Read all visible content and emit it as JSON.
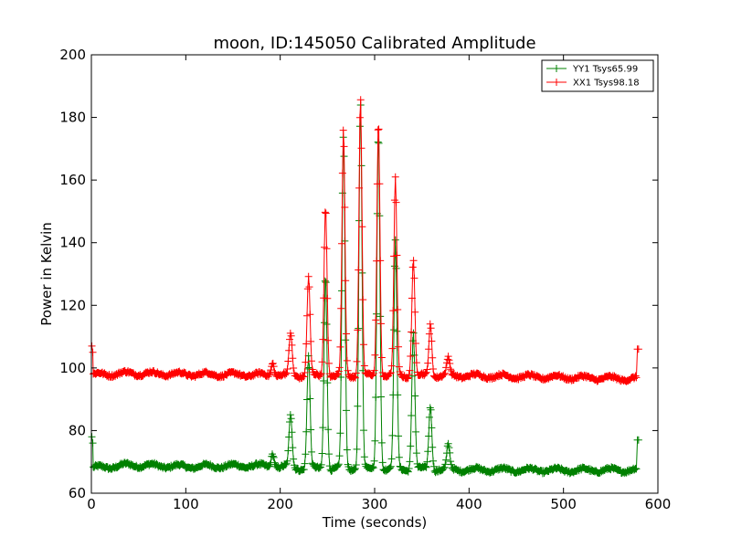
{
  "chart_data": {
    "type": "line",
    "title": "moon, ID:145050 Calibrated Amplitude",
    "xlabel": "Time (seconds)",
    "ylabel": "Power in Kelvin",
    "xlim": [
      0,
      600
    ],
    "ylim": [
      60,
      200
    ],
    "xticks": [
      0,
      100,
      200,
      300,
      400,
      500,
      600
    ],
    "yticks": [
      60,
      80,
      100,
      120,
      140,
      160,
      180,
      200
    ],
    "grid": false,
    "legend_position": "top-right",
    "marker": "+",
    "series": [
      {
        "name": "YY1 Tsys65.99",
        "color": "#008000",
        "t_start": 2,
        "t_end": 578,
        "baseline_points": [
          [
            2,
            68.0
          ],
          [
            40,
            69.0
          ],
          [
            100,
            68.5
          ],
          [
            175,
            68.8
          ],
          [
            230,
            67.8
          ],
          [
            300,
            67.8
          ],
          [
            400,
            67.5
          ],
          [
            500,
            67.3
          ],
          [
            578,
            67.4
          ]
        ],
        "start_spike": 78,
        "end_spike": 77,
        "peaks": [
          [
            192,
            73
          ],
          [
            211,
            85
          ],
          [
            230,
            104
          ],
          [
            248,
            130
          ],
          [
            267,
            174
          ],
          [
            285,
            185
          ],
          [
            304,
            176
          ],
          [
            322,
            140
          ],
          [
            341,
            112
          ],
          [
            359,
            88
          ],
          [
            378,
            75
          ]
        ]
      },
      {
        "name": "XX1 Tsys98.18",
        "color": "#ff0000",
        "t_start": 2,
        "t_end": 578,
        "baseline_points": [
          [
            2,
            97.8
          ],
          [
            40,
            98.3
          ],
          [
            100,
            98.0
          ],
          [
            175,
            97.8
          ],
          [
            230,
            97.5
          ],
          [
            300,
            97.5
          ],
          [
            400,
            97.5
          ],
          [
            500,
            97.0
          ],
          [
            578,
            96.5
          ]
        ],
        "start_spike": 107,
        "end_spike": 106,
        "peaks": [
          [
            192,
            102
          ],
          [
            211,
            111
          ],
          [
            230,
            129
          ],
          [
            248,
            152
          ],
          [
            267,
            176
          ],
          [
            285,
            186
          ],
          [
            304,
            179
          ],
          [
            322,
            160
          ],
          [
            341,
            135
          ],
          [
            359,
            114
          ],
          [
            378,
            103
          ]
        ]
      }
    ]
  }
}
